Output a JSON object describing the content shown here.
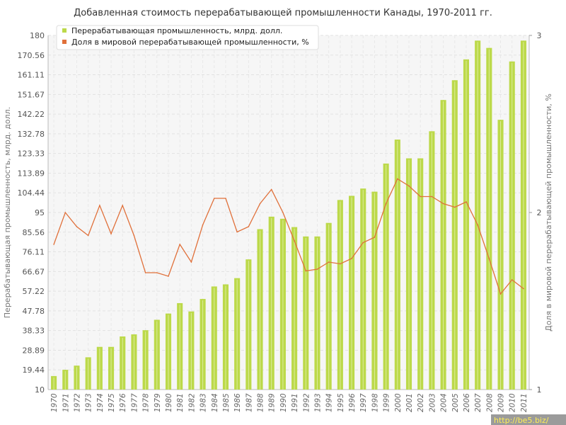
{
  "chart_data": {
    "type": "bar",
    "title": "Добавленная стоимость перерабатывающей промышленности Канады, 1970-2011 гг.",
    "ylabel_left": "Перерабатывающая промышленность, млрд. долл.",
    "ylabel_right": "Доля в мировой перерабатывающей промышленности, %",
    "y_left_ticks": [
      "10",
      "19.44",
      "28.89",
      "38.33",
      "47.78",
      "57.22",
      "66.67",
      "76.11",
      "85.56",
      "95",
      "104.44",
      "113.89",
      "123.33",
      "132.78",
      "142.22",
      "151.67",
      "161.11",
      "170.56",
      "180"
    ],
    "y_right_ticks": [
      "1",
      "2",
      "3"
    ],
    "ylim_left": [
      10,
      180
    ],
    "ylim_right": [
      1,
      3
    ],
    "grid": true,
    "legend_position": "top-left",
    "categories": [
      "1970",
      "1971",
      "1972",
      "1973",
      "1974",
      "1975",
      "1976",
      "1977",
      "1978",
      "1979",
      "1980",
      "1981",
      "1982",
      "1983",
      "1984",
      "1985",
      "1986",
      "1987",
      "1988",
      "1989",
      "1990",
      "1991",
      "1992",
      "1993",
      "1994",
      "1995",
      "1996",
      "1997",
      "1998",
      "1999",
      "2000",
      "2001",
      "2002",
      "2003",
      "2004",
      "2005",
      "2006",
      "2007",
      "2008",
      "2009",
      "2010",
      "2011"
    ],
    "series": [
      {
        "name": "Перерабатывающая промышленность, млрд. долл.",
        "axis": "left",
        "kind": "bar",
        "color": "#bcd94a",
        "values": [
          16.5,
          19.5,
          21.5,
          25.5,
          30.5,
          30.5,
          35.5,
          36.5,
          38.5,
          43.5,
          46.5,
          51.5,
          47.5,
          53.5,
          59.5,
          60.5,
          63.5,
          72.5,
          87,
          93,
          92,
          88,
          83.5,
          83.5,
          90,
          101,
          103,
          106.5,
          105,
          118.5,
          130,
          121,
          121,
          134,
          149,
          158.5,
          168.5,
          177.5,
          174,
          139.5,
          167.5,
          177.5
        ]
      },
      {
        "name": "Доля в мировой перерабатывающей промышленности, %",
        "axis": "right",
        "kind": "line",
        "color": "#e0703a",
        "values": [
          1.82,
          2.0,
          1.92,
          1.87,
          2.04,
          1.88,
          2.04,
          1.87,
          1.66,
          1.66,
          1.64,
          1.82,
          1.72,
          1.93,
          2.08,
          2.08,
          1.89,
          1.92,
          2.05,
          2.13,
          2.0,
          1.84,
          1.67,
          1.68,
          1.72,
          1.71,
          1.74,
          1.83,
          1.86,
          2.05,
          2.19,
          2.15,
          2.09,
          2.09,
          2.05,
          2.03,
          2.06,
          1.93,
          1.74,
          1.54,
          1.62,
          1.57
        ]
      }
    ]
  },
  "watermark": "http://be5.biz/"
}
